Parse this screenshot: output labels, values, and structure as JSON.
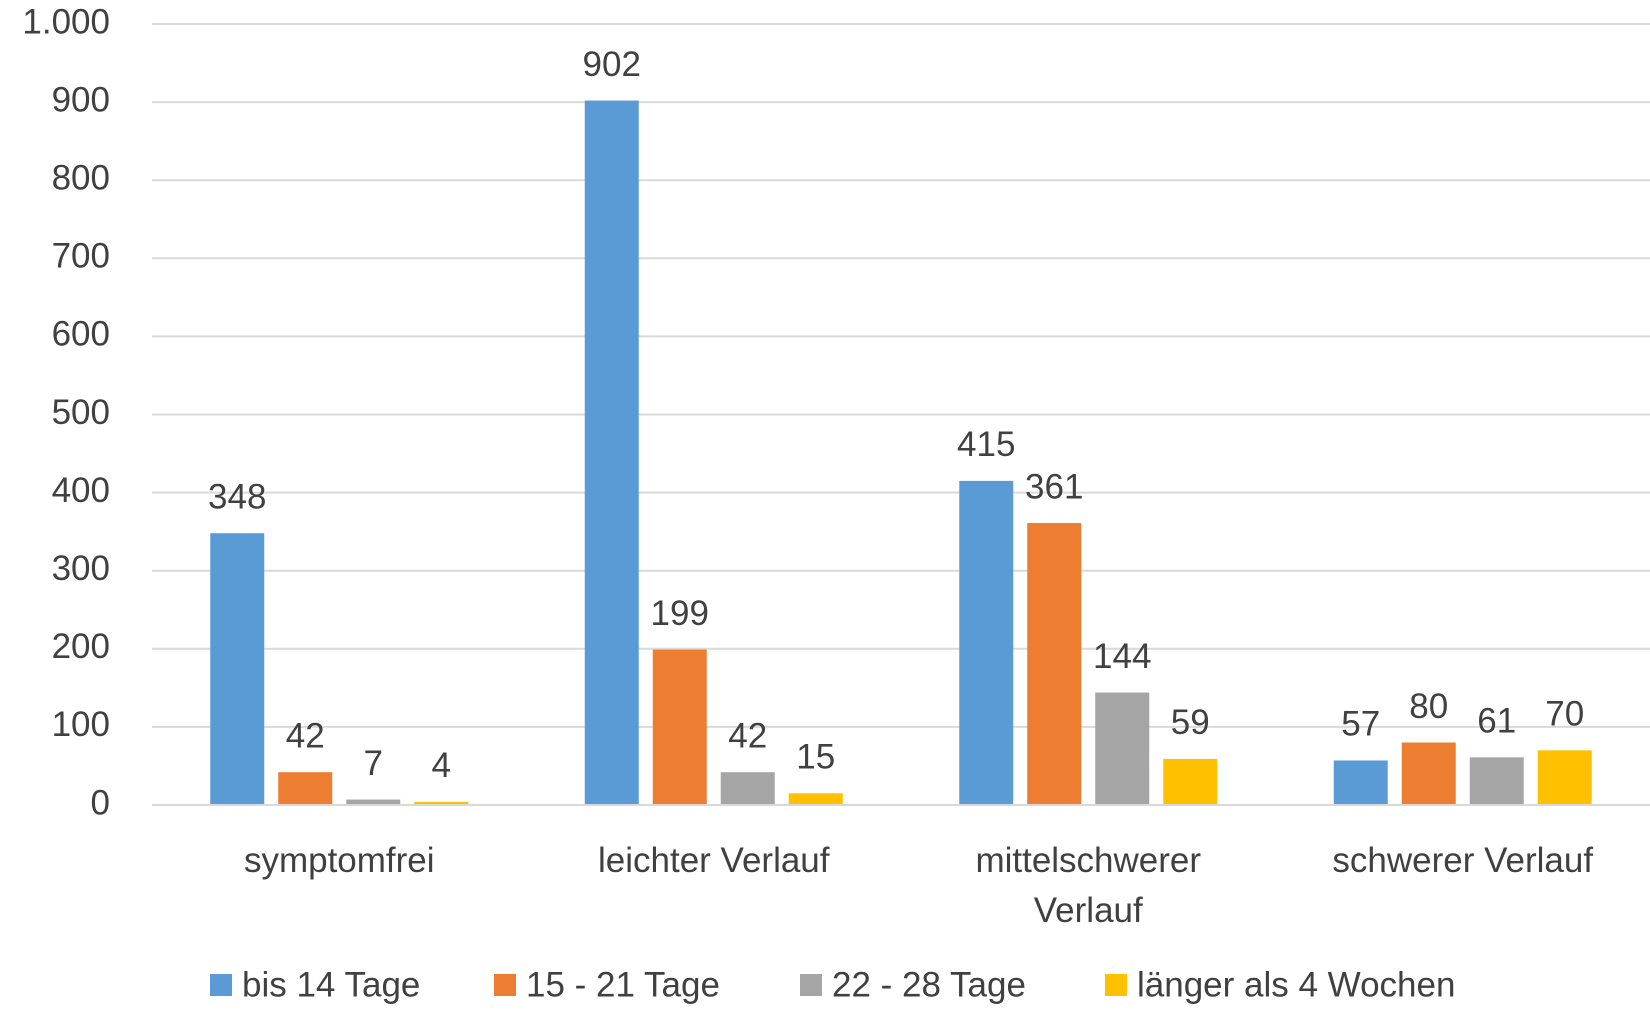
{
  "chart_data": {
    "type": "bar",
    "categories": [
      "symptomfrei",
      "leichter Verlauf",
      "mittelschwerer Verlauf",
      "schwerer Verlauf"
    ],
    "series": [
      {
        "name": "bis 14 Tage",
        "color": "#5b9bd5",
        "values": [
          348,
          902,
          415,
          57
        ]
      },
      {
        "name": "15 - 21 Tage",
        "color": "#ed7d31",
        "values": [
          42,
          199,
          361,
          80
        ]
      },
      {
        "name": "22 - 28 Tage",
        "color": "#a5a5a5",
        "values": [
          7,
          42,
          144,
          61
        ]
      },
      {
        "name": "länger als 4 Wochen",
        "color": "#ffc000",
        "values": [
          4,
          15,
          59,
          70
        ]
      }
    ],
    "ylim": [
      0,
      1000
    ],
    "yticks": [
      0,
      100,
      200,
      300,
      400,
      500,
      600,
      700,
      800,
      900,
      {
        "value": 1000,
        "label": "1.000"
      }
    ],
    "grid": true,
    "legend": "bottom"
  }
}
